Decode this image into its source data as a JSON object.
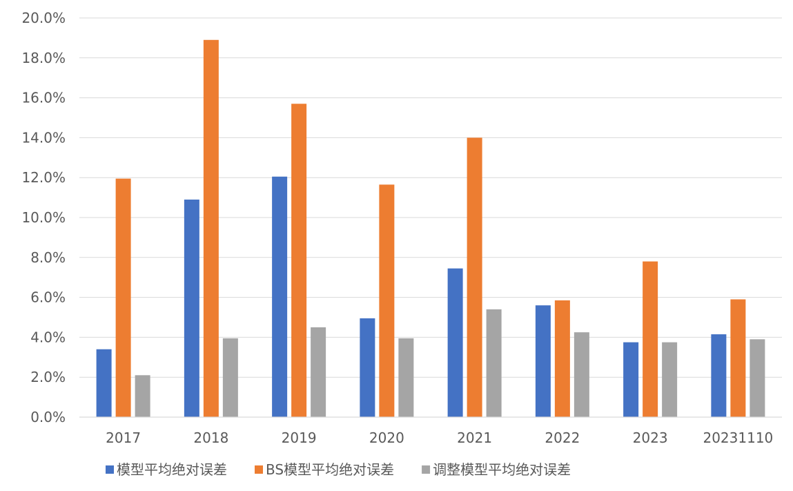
{
  "chart_data": {
    "type": "bar",
    "categories": [
      "2017",
      "2018",
      "2019",
      "2020",
      "2021",
      "2022",
      "2023",
      "20231110"
    ],
    "series": [
      {
        "name": "模型平均绝对误差",
        "color": "#4472c4",
        "values": [
          3.4,
          10.9,
          12.05,
          4.95,
          7.45,
          5.6,
          3.75,
          4.15
        ]
      },
      {
        "name": "BS模型平均绝对误差",
        "color": "#ed7d31",
        "values": [
          11.95,
          18.9,
          15.7,
          11.65,
          14.0,
          5.85,
          7.8,
          5.9
        ]
      },
      {
        "name": "调整模型平均绝对误差",
        "color": "#a5a5a5",
        "values": [
          2.1,
          3.95,
          4.5,
          3.95,
          5.4,
          4.25,
          3.75,
          3.9
        ]
      }
    ],
    "yticks": [
      "0.0%",
      "2.0%",
      "4.0%",
      "6.0%",
      "8.0%",
      "10.0%",
      "12.0%",
      "14.0%",
      "16.0%",
      "18.0%",
      "20.0%"
    ],
    "ylim": [
      0,
      20
    ],
    "grid": true,
    "legend_position": "bottom",
    "title": "",
    "xlabel": "",
    "ylabel": ""
  }
}
